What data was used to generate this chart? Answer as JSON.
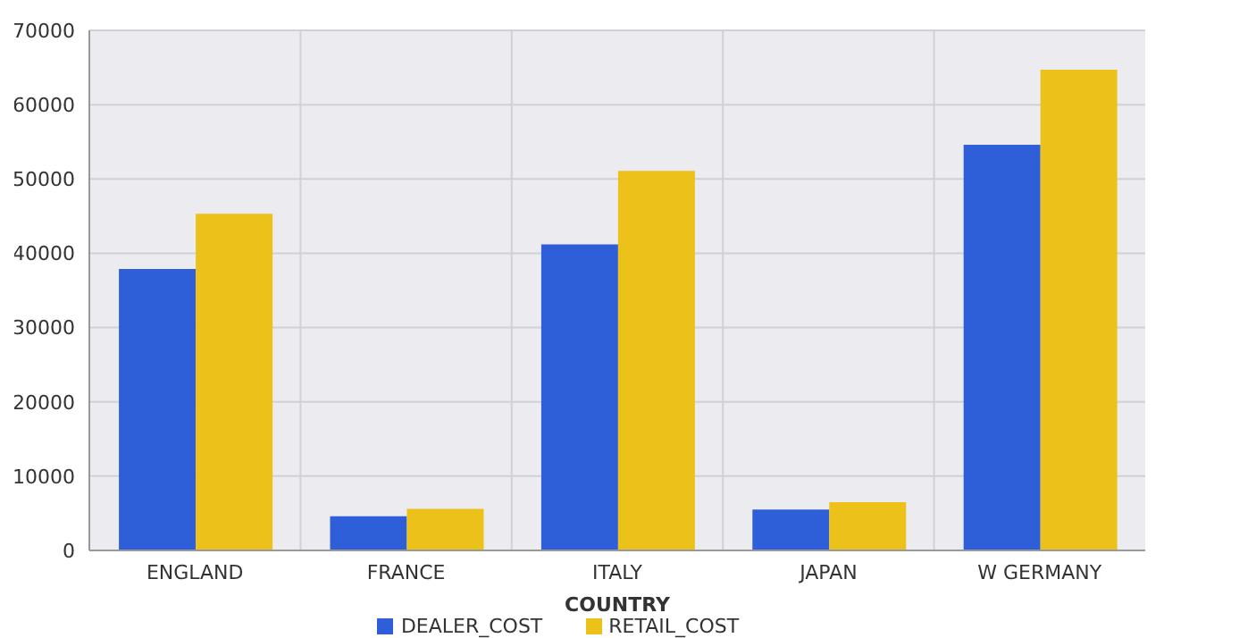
{
  "chart_data": {
    "type": "bar",
    "xlabel": "COUNTRY",
    "categories": [
      "ENGLAND",
      "FRANCE",
      "ITALY",
      "JAPAN",
      "W GERMANY"
    ],
    "series": [
      {
        "name": "DEALER_COST",
        "color": "#2f5fd8",
        "values": [
          37900,
          4600,
          41200,
          5500,
          54600
        ]
      },
      {
        "name": "RETAIL_COST",
        "color": "#ecc21a",
        "values": [
          45300,
          5600,
          51100,
          6500,
          64700
        ]
      }
    ],
    "ylim": [
      0,
      70000
    ],
    "yticks": [
      0,
      10000,
      20000,
      30000,
      40000,
      50000,
      60000,
      70000
    ],
    "grid": true,
    "legend": "bottom"
  }
}
